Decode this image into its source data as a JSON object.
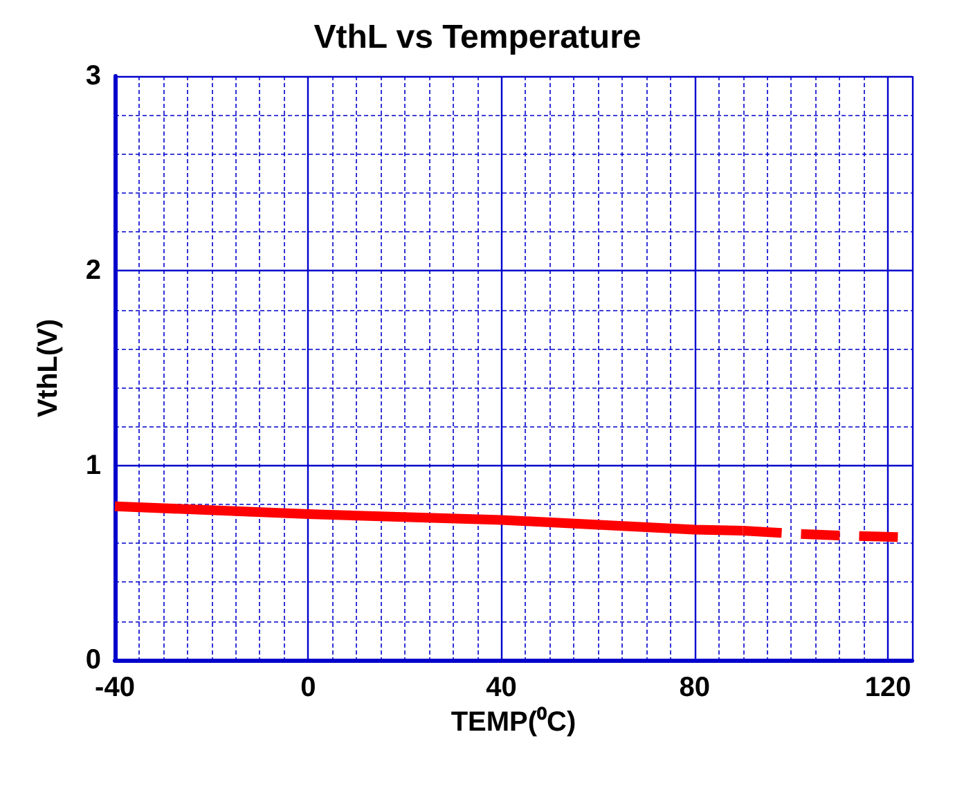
{
  "chart_data": {
    "type": "line",
    "title": "VthL vs Temperature",
    "xlabel": "TEMP(⁰C)",
    "ylabel": "VthL(V)",
    "xlim": [
      -40,
      125
    ],
    "xticks": [
      -40,
      {
        "value": -35,
        "label": null
      },
      {
        "value": -30,
        "label": null
      },
      {
        "value": -25,
        "label": null
      },
      {
        "value": -20,
        "label": null
      },
      {
        "value": -15,
        "label": null
      },
      {
        "value": -10,
        "label": null
      },
      {
        "value": -5,
        "label": null
      },
      0,
      {
        "value": 5,
        "label": null
      },
      {
        "value": 10,
        "label": null
      },
      {
        "value": 15,
        "label": null
      },
      {
        "value": 20,
        "label": null
      },
      {
        "value": 25,
        "label": null
      },
      {
        "value": 30,
        "label": null
      },
      {
        "value": 35,
        "label": null
      },
      40,
      {
        "value": 45,
        "label": null
      },
      {
        "value": 50,
        "label": null
      },
      {
        "value": 55,
        "label": null
      },
      {
        "value": 60,
        "label": null
      },
      {
        "value": 65,
        "label": null
      },
      {
        "value": 70,
        "label": null
      },
      {
        "value": 75,
        "label": null
      },
      80,
      {
        "value": 85,
        "label": null
      },
      {
        "value": 90,
        "label": null
      },
      {
        "value": 95,
        "label": null
      },
      {
        "value": 100,
        "label": null
      },
      {
        "value": 105,
        "label": null
      },
      {
        "value": 110,
        "label": null
      },
      {
        "value": 115,
        "label": null
      },
      120
    ],
    "ylim": [
      0,
      3
    ],
    "yticks": [
      0,
      {
        "value": 0.2,
        "label": null
      },
      {
        "value": 0.4,
        "label": null
      },
      {
        "value": 0.6,
        "label": null
      },
      {
        "value": 0.8,
        "label": null
      },
      1,
      {
        "value": 1.2,
        "label": null
      },
      {
        "value": 1.4,
        "label": null
      },
      {
        "value": 1.6,
        "label": null
      },
      {
        "value": 1.8,
        "label": null
      },
      2,
      {
        "value": 2.2,
        "label": null
      },
      {
        "value": 2.4,
        "label": null
      },
      {
        "value": 2.6,
        "label": null
      },
      {
        "value": 2.8,
        "label": null
      },
      3
    ],
    "grid": true,
    "marker": "none",
    "series": [
      {
        "color": "#ff0000",
        "line_style": "solid",
        "x": [
          -40,
          0,
          40,
          80,
          90
        ],
        "values": [
          0.79,
          0.75,
          0.72,
          0.67,
          0.665
        ]
      },
      {
        "color": "#ff0000",
        "line_style": "dashed",
        "x": [
          90,
          100,
          110,
          125
        ],
        "values": [
          0.665,
          0.65,
          0.64,
          0.63
        ]
      }
    ]
  }
}
